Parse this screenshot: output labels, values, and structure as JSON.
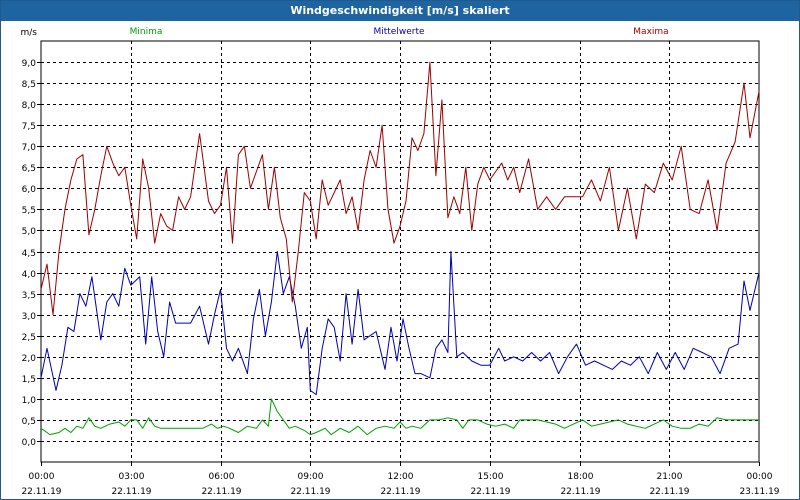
{
  "window": {
    "title": "Windgeschwindigkeit [m/s] skaliert"
  },
  "colors": {
    "min": "#00a000",
    "mean": "#0000b4",
    "max": "#a00000",
    "titlebar": "#1e64a0",
    "grid": "#000000"
  },
  "chart_data": {
    "type": "line",
    "title": "Windgeschwindigkeit [m/s] skaliert",
    "ylabel": "m/s",
    "xlabel": "",
    "ylim": [
      -0.5,
      9.5
    ],
    "xlim_hours": [
      0,
      24
    ],
    "grid": true,
    "legend": "top",
    "yticks": [
      "0,0",
      "0,5",
      "1,0",
      "1,5",
      "2,0",
      "2,5",
      "3,0",
      "3,5",
      "4,0",
      "4,5",
      "5,0",
      "5,5",
      "6,0",
      "6,5",
      "7,0",
      "7,5",
      "8,0",
      "8,5",
      "9,0"
    ],
    "xticks": [
      {
        "time": "00:00",
        "date": "22.11.19"
      },
      {
        "time": "03:00",
        "date": "22.11.19"
      },
      {
        "time": "06:00",
        "date": "22.11.19"
      },
      {
        "time": "09:00",
        "date": "22.11.19"
      },
      {
        "time": "12:00",
        "date": "22.11.19"
      },
      {
        "time": "15:00",
        "date": "22.11.19"
      },
      {
        "time": "18:00",
        "date": "22.11.19"
      },
      {
        "time": "21:00",
        "date": "22.11.19"
      },
      {
        "time": "00:00",
        "date": "23.11.19"
      }
    ],
    "series": [
      {
        "name": "Minima",
        "color": "#00a000",
        "x": [
          0,
          0.3,
          0.6,
          0.8,
          1,
          1.2,
          1.4,
          1.6,
          1.8,
          2,
          2.3,
          2.6,
          2.8,
          3,
          3.2,
          3.4,
          3.6,
          3.8,
          4,
          4.3,
          4.6,
          5,
          5.4,
          5.7,
          5.9,
          6.1,
          6.3,
          6.6,
          6.9,
          7.2,
          7.4,
          7.6,
          7.7,
          7.9,
          8.1,
          8.3,
          8.5,
          8.8,
          9,
          9.2,
          9.5,
          9.7,
          10,
          10.3,
          10.6,
          10.9,
          11.2,
          11.5,
          11.8,
          12,
          12.2,
          12.4,
          12.7,
          13,
          13.3,
          13.6,
          13.9,
          14.1,
          14.3,
          14.6,
          14.9,
          15.2,
          15.5,
          15.8,
          16,
          16.3,
          16.6,
          16.9,
          17.2,
          17.5,
          17.8,
          18.1,
          18.4,
          18.7,
          19,
          19.3,
          19.6,
          19.9,
          20.2,
          20.5,
          20.8,
          21.1,
          21.4,
          21.7,
          22,
          22.3,
          22.6,
          22.9,
          23.2,
          23.5,
          23.8,
          24
        ],
        "y": [
          0.3,
          0.15,
          0.2,
          0.3,
          0.2,
          0.35,
          0.3,
          0.55,
          0.35,
          0.3,
          0.4,
          0.45,
          0.35,
          0.5,
          0.5,
          0.3,
          0.55,
          0.35,
          0.3,
          0.3,
          0.3,
          0.3,
          0.3,
          0.4,
          0.3,
          0.35,
          0.3,
          0.2,
          0.35,
          0.3,
          0.5,
          0.35,
          1.0,
          0.7,
          0.5,
          0.3,
          0.35,
          0.25,
          0.15,
          0.2,
          0.3,
          0.15,
          0.3,
          0.2,
          0.35,
          0.15,
          0.3,
          0.35,
          0.3,
          0.45,
          0.3,
          0.35,
          0.3,
          0.5,
          0.5,
          0.55,
          0.5,
          0.3,
          0.5,
          0.5,
          0.4,
          0.35,
          0.4,
          0.3,
          0.5,
          0.5,
          0.5,
          0.45,
          0.4,
          0.3,
          0.4,
          0.5,
          0.35,
          0.4,
          0.45,
          0.5,
          0.4,
          0.35,
          0.3,
          0.4,
          0.5,
          0.35,
          0.3,
          0.3,
          0.4,
          0.35,
          0.55,
          0.5,
          0.5,
          0.5,
          0.5,
          0.5
        ]
      },
      {
        "name": "Mittelwerte",
        "color": "#0000b4",
        "x": [
          0,
          0.2,
          0.5,
          0.7,
          0.9,
          1.1,
          1.3,
          1.5,
          1.7,
          2,
          2.2,
          2.4,
          2.6,
          2.8,
          3,
          3.3,
          3.5,
          3.7,
          3.9,
          4.1,
          4.3,
          4.5,
          4.7,
          5,
          5.3,
          5.6,
          5.8,
          6,
          6.2,
          6.4,
          6.6,
          6.9,
          7.1,
          7.3,
          7.5,
          7.7,
          7.9,
          8.1,
          8.3,
          8.5,
          8.7,
          8.9,
          9,
          9.2,
          9.4,
          9.6,
          9.8,
          10,
          10.2,
          10.4,
          10.6,
          10.8,
          11,
          11.2,
          11.5,
          11.7,
          11.9,
          12.1,
          12.3,
          12.5,
          12.7,
          13,
          13.2,
          13.4,
          13.6,
          13.7,
          13.9,
          14.1,
          14.4,
          14.7,
          15,
          15.3,
          15.5,
          15.8,
          16.1,
          16.4,
          16.7,
          17,
          17.3,
          17.6,
          17.9,
          18.2,
          18.5,
          18.8,
          19.1,
          19.4,
          19.7,
          20,
          20.3,
          20.6,
          20.9,
          21.2,
          21.5,
          21.8,
          22.1,
          22.4,
          22.7,
          23,
          23.3,
          23.5,
          23.7,
          24
        ],
        "y": [
          1.5,
          2.2,
          1.2,
          1.8,
          2.7,
          2.6,
          3.5,
          3.2,
          3.9,
          2.4,
          3.3,
          3.5,
          3.2,
          4.1,
          3.7,
          3.9,
          2.3,
          3.9,
          2.6,
          2.0,
          3.3,
          2.8,
          2.8,
          2.8,
          3.2,
          2.3,
          3.0,
          3.6,
          2.2,
          1.9,
          2.2,
          1.6,
          2.9,
          3.6,
          2.5,
          3.3,
          4.5,
          3.5,
          3.9,
          3.2,
          2.2,
          2.7,
          1.2,
          1.1,
          2.2,
          2.9,
          2.7,
          1.9,
          3.5,
          2.3,
          3.6,
          2.4,
          2.5,
          2.6,
          1.7,
          2.7,
          1.9,
          2.9,
          2.2,
          1.6,
          1.6,
          1.5,
          2.2,
          2.4,
          2.1,
          4.5,
          2.0,
          2.1,
          1.9,
          1.8,
          1.8,
          2.2,
          1.9,
          2.0,
          1.9,
          2.1,
          1.9,
          2.1,
          1.6,
          2.0,
          2.3,
          1.8,
          1.9,
          1.8,
          1.7,
          1.9,
          1.8,
          2.0,
          1.6,
          2.1,
          1.7,
          2.1,
          1.7,
          2.2,
          2.1,
          2.0,
          1.6,
          2.2,
          2.3,
          3.8,
          3.1,
          4.0
        ]
      },
      {
        "name": "Maxima",
        "color": "#a00000",
        "x": [
          0,
          0.2,
          0.4,
          0.6,
          0.8,
          1,
          1.2,
          1.4,
          1.6,
          1.8,
          2,
          2.2,
          2.4,
          2.6,
          2.8,
          3,
          3.2,
          3.4,
          3.6,
          3.8,
          4,
          4.2,
          4.4,
          4.6,
          4.8,
          5,
          5.3,
          5.6,
          5.8,
          6,
          6.2,
          6.4,
          6.6,
          6.8,
          7,
          7.2,
          7.4,
          7.6,
          7.8,
          8,
          8.2,
          8.4,
          8.6,
          8.8,
          9,
          9.2,
          9.4,
          9.6,
          9.8,
          10,
          10.2,
          10.4,
          10.6,
          10.8,
          11,
          11.2,
          11.4,
          11.6,
          11.8,
          12,
          12.2,
          12.4,
          12.6,
          12.8,
          13,
          13.2,
          13.4,
          13.6,
          13.8,
          14,
          14.2,
          14.4,
          14.6,
          14.8,
          15,
          15.2,
          15.4,
          15.6,
          15.8,
          16,
          16.3,
          16.6,
          16.9,
          17.2,
          17.5,
          17.8,
          18.1,
          18.4,
          18.7,
          19,
          19.3,
          19.6,
          19.9,
          20.2,
          20.5,
          20.8,
          21.1,
          21.4,
          21.7,
          22,
          22.3,
          22.6,
          22.9,
          23.2,
          23.5,
          23.7,
          24
        ],
        "y": [
          3.6,
          4.2,
          3.0,
          4.5,
          5.5,
          6.2,
          6.7,
          6.8,
          4.9,
          5.5,
          6.3,
          7.0,
          6.6,
          6.3,
          6.5,
          5.6,
          4.8,
          6.7,
          6.0,
          4.7,
          5.4,
          5.1,
          5.0,
          5.8,
          5.5,
          5.8,
          7.3,
          5.7,
          5.4,
          5.6,
          6.5,
          4.7,
          6.8,
          7.0,
          6.0,
          6.4,
          6.8,
          5.5,
          6.5,
          5.3,
          4.8,
          3.3,
          4.5,
          5.9,
          5.7,
          4.8,
          6.2,
          5.6,
          5.9,
          6.2,
          5.4,
          5.8,
          5.0,
          6.2,
          6.9,
          6.5,
          7.5,
          5.5,
          4.7,
          5.1,
          5.7,
          7.2,
          6.9,
          7.3,
          9.0,
          6.3,
          8.1,
          5.3,
          5.8,
          5.4,
          6.5,
          5.0,
          6.1,
          6.5,
          6.2,
          6.4,
          6.6,
          6.2,
          6.5,
          5.9,
          6.7,
          5.5,
          5.8,
          5.5,
          5.8,
          5.8,
          5.8,
          6.2,
          5.7,
          6.5,
          5.0,
          6.0,
          4.8,
          6.1,
          5.9,
          6.6,
          6.2,
          7.0,
          5.5,
          5.4,
          6.2,
          5.0,
          6.6,
          7.1,
          8.5,
          7.2,
          8.3
        ]
      }
    ]
  }
}
